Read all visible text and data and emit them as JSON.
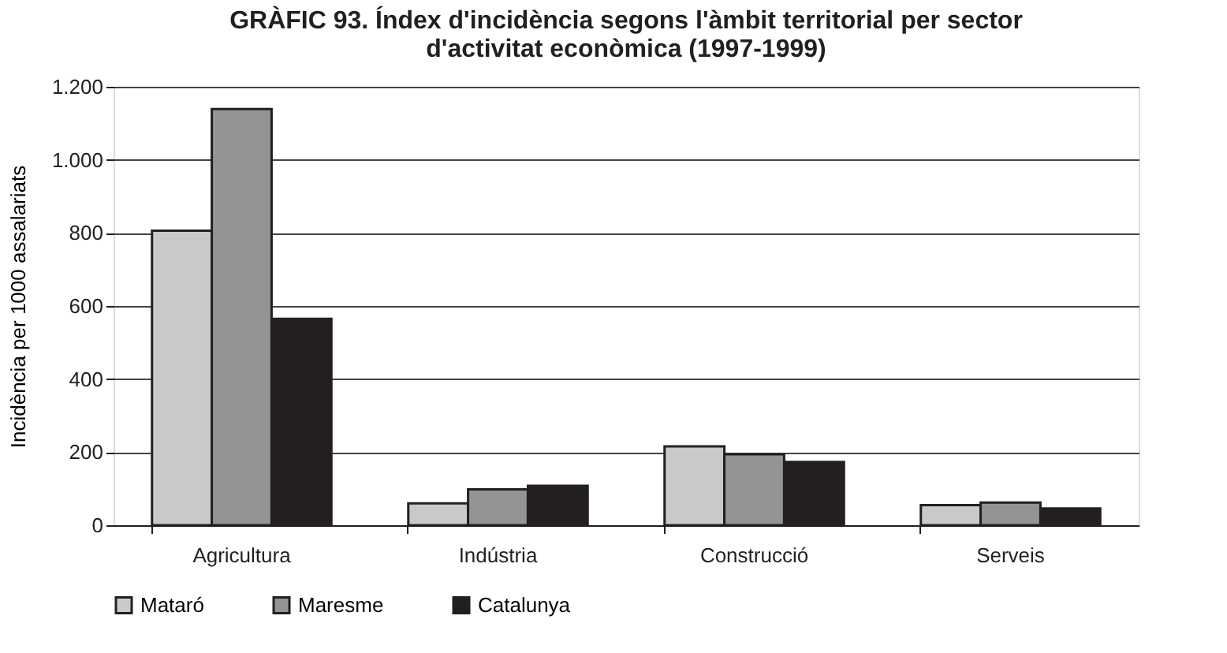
{
  "chart_data": {
    "type": "bar",
    "title": "GRÀFIC 93. Índex d'incidència segons l'àmbit territorial per sector\nd'activitat econòmica (1997-1999)",
    "ylabel": "Incidència per 1000 assalariats",
    "categories": [
      "Agricultura",
      "Indústria",
      "Construcció",
      "Serveis"
    ],
    "series": [
      {
        "name": "Mataró",
        "color": "#c8c9cb",
        "values": [
          806,
          60,
          216,
          55
        ]
      },
      {
        "name": "Maresme",
        "color": "#939496",
        "values": [
          1139,
          98,
          194,
          62
        ]
      },
      {
        "name": "Catalunya",
        "color": "#231f20",
        "values": [
          565,
          108,
          173,
          46
        ]
      }
    ],
    "ylim": [
      0,
      1200
    ],
    "yticks": [
      0,
      200,
      400,
      600,
      800,
      {
        "value": 1000,
        "label": "1.000"
      },
      {
        "value": 1200,
        "label": "1.200"
      }
    ],
    "grid": "y",
    "legend": "bottom left"
  }
}
